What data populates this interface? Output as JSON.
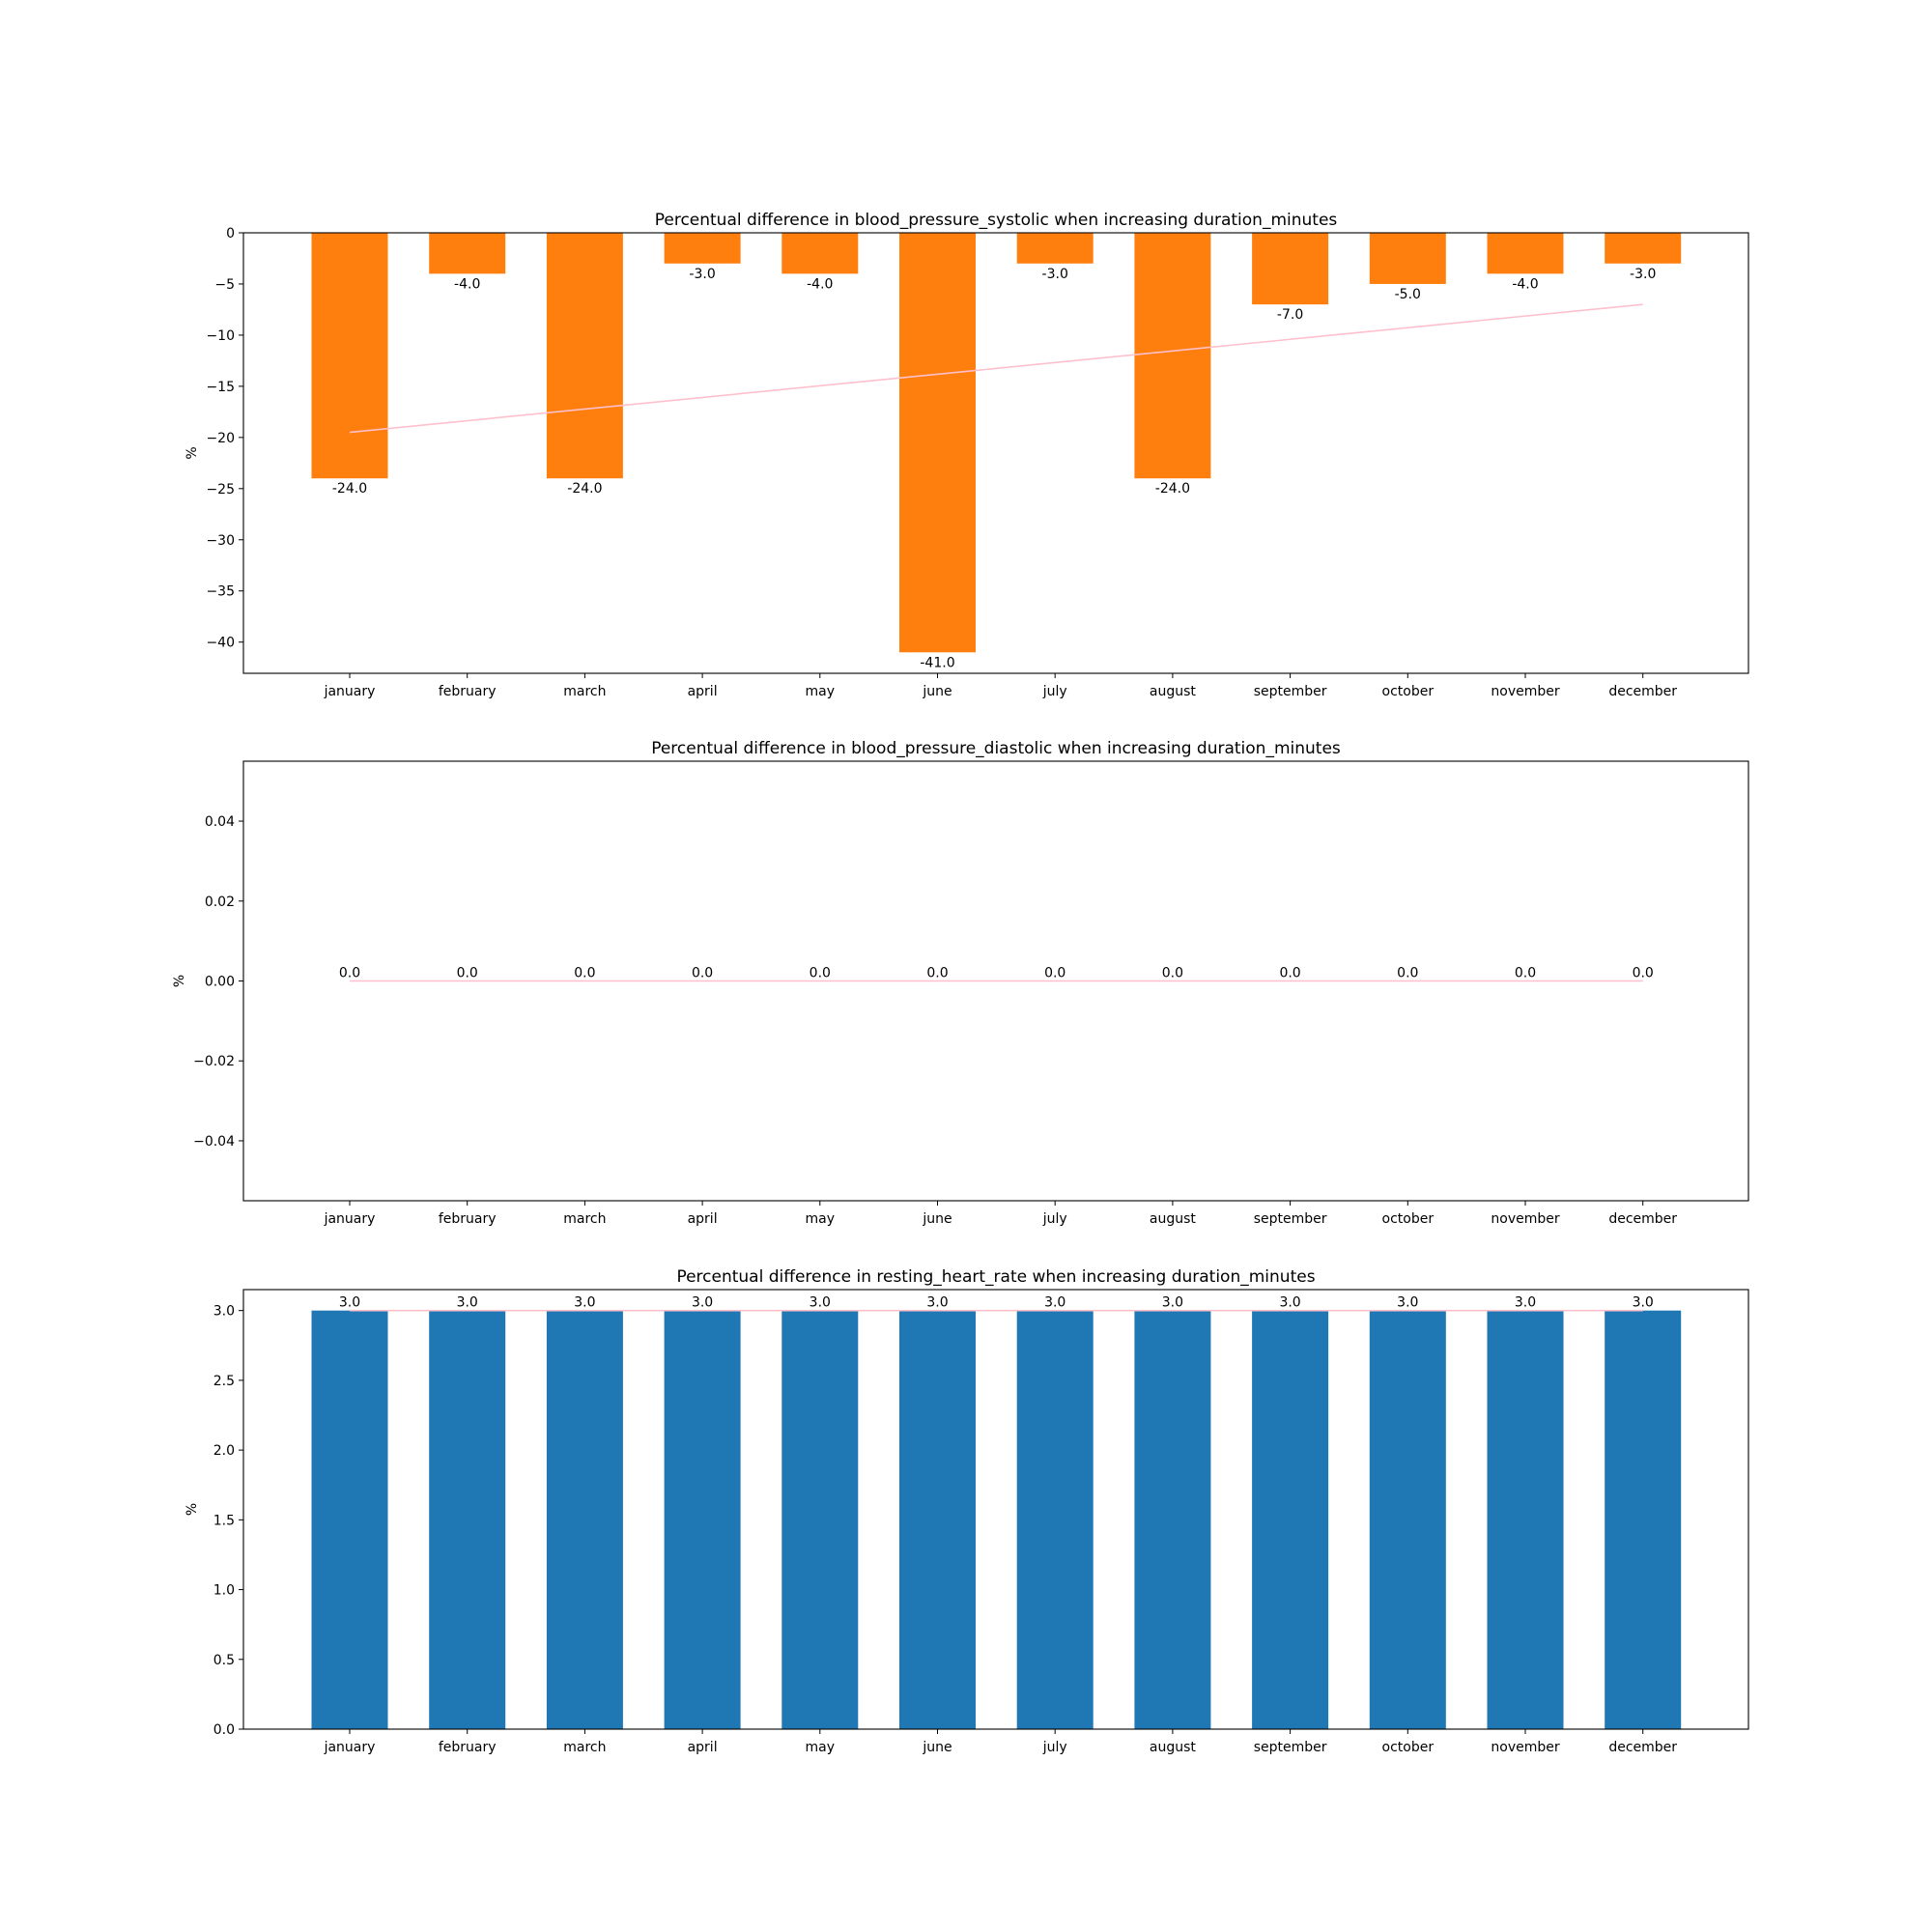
{
  "chart_data": [
    {
      "type": "bar",
      "title": "Percentual difference in blood_pressure_systolic when increasing duration_minutes",
      "xlabel": "",
      "ylabel": "%",
      "categories": [
        "january",
        "february",
        "march",
        "april",
        "may",
        "june",
        "july",
        "august",
        "september",
        "october",
        "november",
        "december"
      ],
      "values": [
        -24.0,
        -4.0,
        -24.0,
        -3.0,
        -4.0,
        -41.0,
        -3.0,
        -24.0,
        -7.0,
        -5.0,
        -4.0,
        -3.0
      ],
      "data_labels": [
        "-24.0",
        "-4.0",
        "-24.0",
        "-3.0",
        "-4.0",
        "-41.0",
        "-3.0",
        "-24.0",
        "-7.0",
        "-5.0",
        "-4.0",
        "-3.0"
      ],
      "ylim": [
        -43.05,
        0
      ],
      "yticks": [
        0,
        -5,
        -10,
        -15,
        -20,
        -25,
        -30,
        -35,
        -40
      ],
      "ytick_labels": [
        "0",
        "−5",
        "−10",
        "−15",
        "−20",
        "−25",
        "−30",
        "−35",
        "−40"
      ],
      "bar_color": "#ff7f0e",
      "trend_line": {
        "color": "#ffc0cb",
        "start": -19.5,
        "end": -7.0
      },
      "grid": false
    },
    {
      "type": "bar",
      "title": "Percentual difference in blood_pressure_diastolic when increasing duration_minutes",
      "xlabel": "",
      "ylabel": "%",
      "categories": [
        "january",
        "february",
        "march",
        "april",
        "may",
        "june",
        "july",
        "august",
        "september",
        "october",
        "november",
        "december"
      ],
      "values": [
        0.0,
        0.0,
        0.0,
        0.0,
        0.0,
        0.0,
        0.0,
        0.0,
        0.0,
        0.0,
        0.0,
        0.0
      ],
      "data_labels": [
        "0.0",
        "0.0",
        "0.0",
        "0.0",
        "0.0",
        "0.0",
        "0.0",
        "0.0",
        "0.0",
        "0.0",
        "0.0",
        "0.0"
      ],
      "ylim": [
        -0.055,
        0.055
      ],
      "yticks": [
        0.04,
        0.02,
        0.0,
        -0.02,
        -0.04
      ],
      "ytick_labels": [
        "0.04",
        "0.02",
        "0.00",
        "−0.02",
        "−0.04"
      ],
      "bar_color": "#1f77b4",
      "trend_line": {
        "color": "#ffc0cb",
        "start": 0.0,
        "end": 0.0
      },
      "grid": false
    },
    {
      "type": "bar",
      "title": "Percentual difference in resting_heart_rate when increasing duration_minutes",
      "xlabel": "",
      "ylabel": "%",
      "categories": [
        "january",
        "february",
        "march",
        "april",
        "may",
        "june",
        "july",
        "august",
        "september",
        "october",
        "november",
        "december"
      ],
      "values": [
        3.0,
        3.0,
        3.0,
        3.0,
        3.0,
        3.0,
        3.0,
        3.0,
        3.0,
        3.0,
        3.0,
        3.0
      ],
      "data_labels": [
        "3.0",
        "3.0",
        "3.0",
        "3.0",
        "3.0",
        "3.0",
        "3.0",
        "3.0",
        "3.0",
        "3.0",
        "3.0",
        "3.0"
      ],
      "ylim": [
        0,
        3.15
      ],
      "yticks": [
        0.0,
        0.5,
        1.0,
        1.5,
        2.0,
        2.5,
        3.0
      ],
      "ytick_labels": [
        "0.0",
        "0.5",
        "1.0",
        "1.5",
        "2.0",
        "2.5",
        "3.0"
      ],
      "bar_color": "#1f77b4",
      "trend_line": {
        "color": "#ffc0cb",
        "start": 3.0,
        "end": 3.0
      },
      "grid": false
    }
  ]
}
